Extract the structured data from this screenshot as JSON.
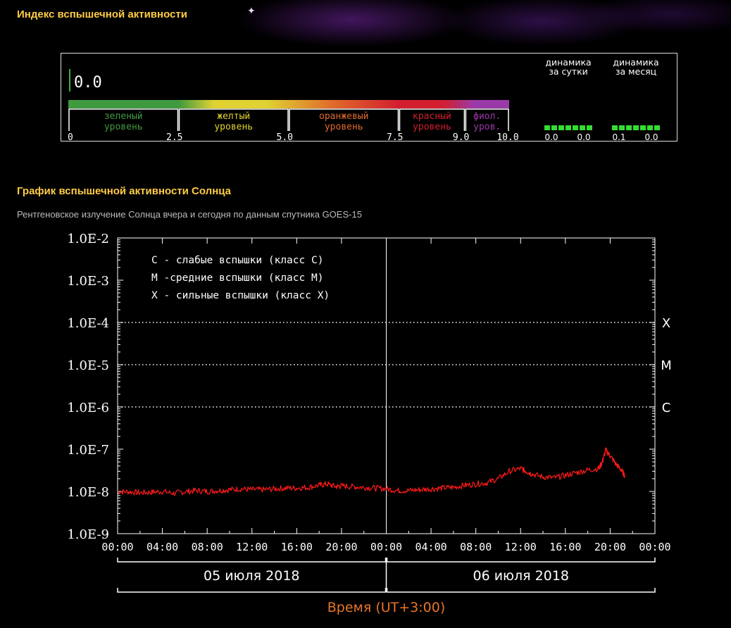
{
  "header": {
    "title": "Индекс вспышечной активности"
  },
  "flare_index": {
    "current_value": "0.0",
    "levels": [
      {
        "label_line1": "зеленый",
        "label_line2": "уровень",
        "from": 0,
        "to": 2.5,
        "color": "#3f9a3f"
      },
      {
        "label_line1": "желтый",
        "label_line2": "уровень",
        "from": 2.5,
        "to": 5.0,
        "color": "#e0d232"
      },
      {
        "label_line1": "оранжевый",
        "label_line2": "уровень",
        "from": 5.0,
        "to": 7.5,
        "color": "#e06a2c"
      },
      {
        "label_line1": "красный",
        "label_line2": "уровень",
        "from": 7.5,
        "to": 9.0,
        "color": "#d21e2e"
      },
      {
        "label_line1": "фиол.",
        "label_line2": "уров.",
        "from": 9.0,
        "to": 10.0,
        "color": "#9a3aa8"
      }
    ],
    "scale_ticks": [
      "0",
      "2.5",
      "5.0",
      "7.5",
      "9.0",
      "10.0"
    ],
    "dynamics": [
      {
        "label_line1": "динамика",
        "label_line2": "за сутки",
        "min": "0.0",
        "max": "0.0",
        "color": "#33dd33"
      },
      {
        "label_line1": "динамика",
        "label_line2": "за месяц",
        "min": "0.1",
        "max": "0.0",
        "color": "#33dd33"
      }
    ]
  },
  "graph_section": {
    "title": "График вспышечной активности Солнца",
    "subtitle": "Рентгеновское излучение Солнца вчера и сегодня по данным спутника GOES-15"
  },
  "chart_data": {
    "type": "line",
    "y_scale": "log",
    "ylim": [
      1e-09,
      0.01
    ],
    "y_tick_labels": [
      "1.0E-2",
      "1.0E-3",
      "1.0E-4",
      "1.0E-5",
      "1.0E-6",
      "1.0E-7",
      "1.0E-8",
      "1.0E-9"
    ],
    "x_tick_labels": [
      "00:00",
      "04:00",
      "08:00",
      "12:00",
      "16:00",
      "20:00",
      "00:00",
      "04:00",
      "08:00",
      "12:00",
      "16:00",
      "20:00",
      "00:00"
    ],
    "xlim_hours": [
      0,
      48
    ],
    "xlabel": "Время (UT+3:00)",
    "dates": [
      "05 июля 2018",
      "06 июля 2018"
    ],
    "legend": [
      "С - слабые вспышки (класс С)",
      "М -средние вспышки (класс М)",
      "Х - сильные вспышки (класс Х)"
    ],
    "class_lines": [
      {
        "label": "X",
        "value": 0.0001
      },
      {
        "label": "M",
        "value": 1e-05
      },
      {
        "label": "C",
        "value": 1e-06
      }
    ],
    "series": [
      {
        "color": "#ff1a1a",
        "x": [
          0,
          1,
          2,
          3,
          4,
          5,
          6,
          7,
          8,
          9,
          10,
          11,
          12,
          13,
          14,
          15,
          16,
          17,
          18,
          18.7,
          19.5,
          20,
          21,
          22,
          23,
          24,
          25,
          26,
          27,
          28,
          29,
          30,
          31,
          32,
          33,
          34,
          35,
          36,
          36.5,
          37,
          38,
          39,
          40,
          41,
          42,
          43,
          43.3,
          43.6,
          44,
          44.5,
          45,
          45.3
        ],
        "y": [
          1e-08,
          9.8e-09,
          9.3e-09,
          9.6e-09,
          1e-08,
          9e-09,
          9.8e-09,
          1.05e-08,
          1e-08,
          1.05e-08,
          1.1e-08,
          1.15e-08,
          1.1e-08,
          1.1e-08,
          1.15e-08,
          1.2e-08,
          1.2e-08,
          1.25e-08,
          1.4e-08,
          1.5e-08,
          1.3e-08,
          1.35e-08,
          1.3e-08,
          1.25e-08,
          1.2e-08,
          1.15e-08,
          1.05e-08,
          1.05e-08,
          1.1e-08,
          1.15e-08,
          1.2e-08,
          1.25e-08,
          1.4e-08,
          1.5e-08,
          1.6e-08,
          2e-08,
          3e-08,
          3.5e-08,
          3e-08,
          2.6e-08,
          2.2e-08,
          2.1e-08,
          2.4e-08,
          2.8e-08,
          3.2e-08,
          3.5e-08,
          5e-08,
          9.5e-08,
          7e-08,
          4.5e-08,
          3.2e-08,
          2.4e-08
        ]
      }
    ]
  }
}
